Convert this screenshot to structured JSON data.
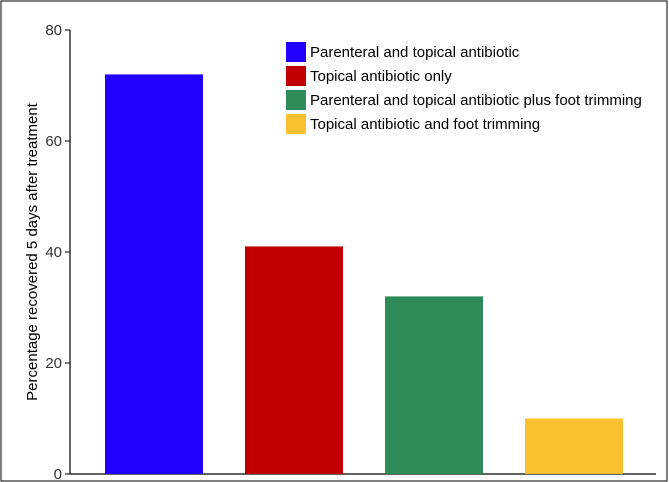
{
  "chart_data": {
    "type": "bar",
    "categories": [
      "Parenteral and topical antibiotic",
      "Topical antibiotic only",
      "Parenteral and topical antibiotic plus foot trimming",
      "Topical antibiotic and foot trimming"
    ],
    "values": [
      72,
      41,
      32,
      10
    ],
    "colors": [
      "#2200ff",
      "#c00000",
      "#2e8b57",
      "#fbc02d"
    ],
    "title": "",
    "xlabel": "",
    "ylabel": "Percentage recovered 5 days after treatment",
    "ylim": [
      0,
      80
    ],
    "yticks": [
      0,
      20,
      40,
      60,
      80
    ],
    "grid": false,
    "legend_position": "top-right"
  }
}
